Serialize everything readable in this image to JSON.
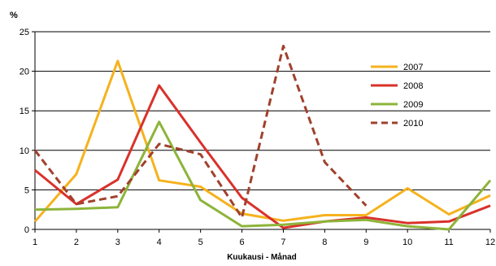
{
  "chart_data": {
    "type": "line",
    "title": "",
    "ylabel": "%",
    "xlabel": "Kuukausi - Månad",
    "x": [
      1,
      2,
      3,
      4,
      5,
      6,
      7,
      8,
      9,
      10,
      11,
      12
    ],
    "ylim": [
      0,
      25
    ],
    "yticks": [
      0,
      5,
      10,
      15,
      20,
      25
    ],
    "grid": "horizontal",
    "legend": "right",
    "series": [
      {
        "name": "2007",
        "color": "#F5B21D",
        "dashed": false,
        "values": [
          1.0,
          7.0,
          21.3,
          6.2,
          5.4,
          2.0,
          1.1,
          1.8,
          1.8,
          5.2,
          1.9,
          4.3
        ]
      },
      {
        "name": "2008",
        "color": "#D9312B",
        "dashed": false,
        "values": [
          7.5,
          3.2,
          6.3,
          18.2,
          11.0,
          4.0,
          0.2,
          1.0,
          1.5,
          0.8,
          1.0,
          3.0
        ]
      },
      {
        "name": "2009",
        "color": "#8DB43A",
        "dashed": false,
        "values": [
          2.5,
          2.6,
          2.8,
          13.6,
          3.7,
          0.4,
          0.6,
          1.0,
          1.2,
          0.4,
          0.0,
          6.2
        ]
      },
      {
        "name": "2010",
        "color": "#A0412D",
        "dashed": true,
        "values": [
          10.0,
          3.2,
          4.2,
          10.8,
          9.5,
          1.5,
          23.2,
          8.5,
          3.0,
          null,
          null,
          null
        ]
      }
    ]
  }
}
